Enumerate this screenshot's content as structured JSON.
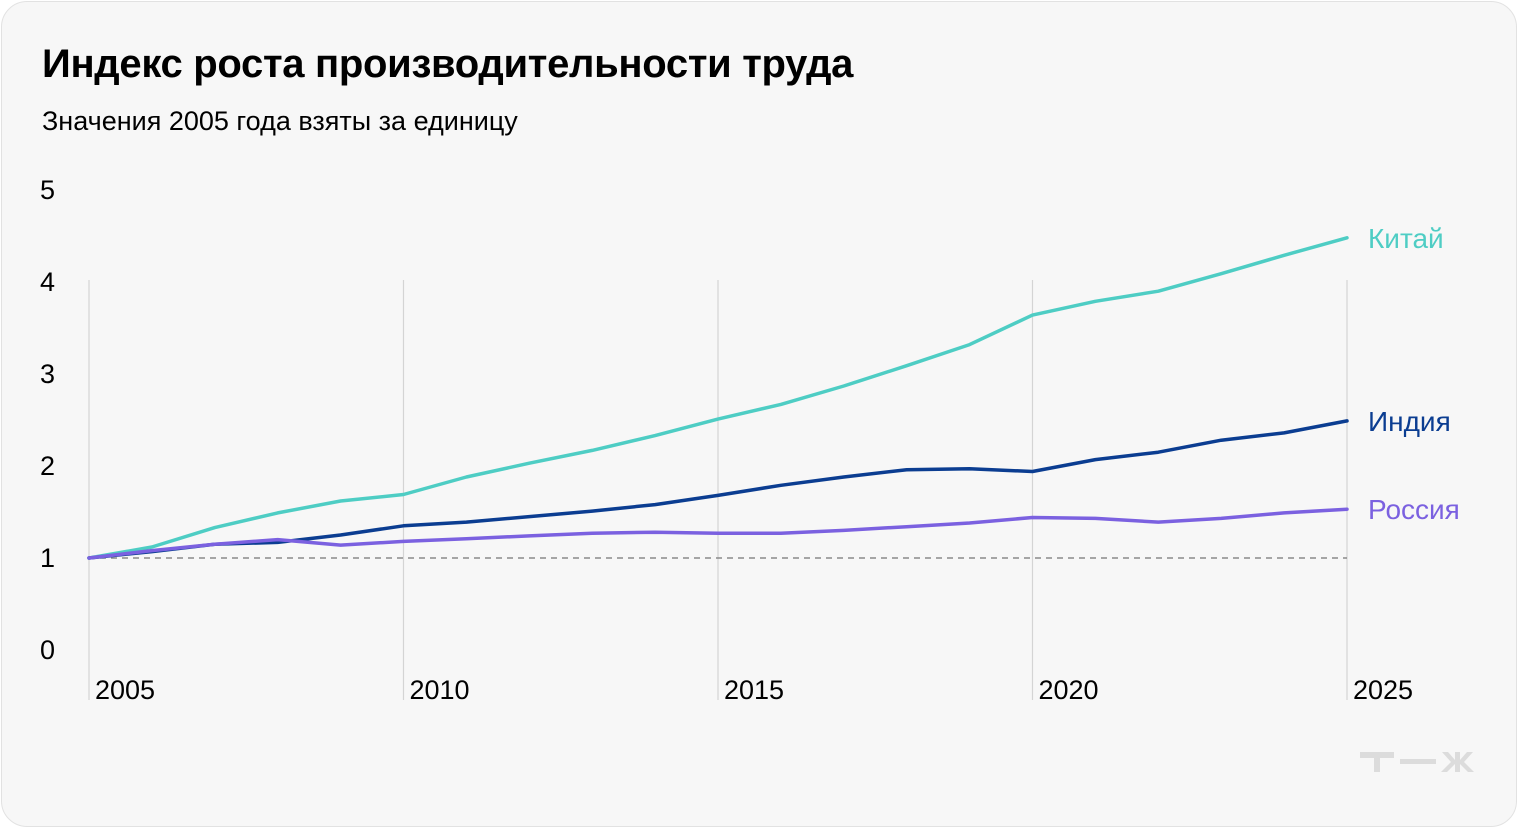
{
  "chart_data": {
    "type": "line",
    "title": "Индекс роста производительности труда",
    "subtitle": "Значения 2005 года взяты за единицу",
    "xlabel": "",
    "ylabel": "",
    "xlim": [
      2005,
      2025
    ],
    "ylim": [
      0,
      5
    ],
    "x_ticks": [
      "2005",
      "2010",
      "2015",
      "2020",
      "2025"
    ],
    "y_ticks": [
      "0",
      "1",
      "2",
      "3",
      "4",
      "5"
    ],
    "grid": "vertical lines at x ticks",
    "reference_line": {
      "y": 1,
      "style": "dashed"
    },
    "legend": "direct labels at line ends, right",
    "x": [
      2005,
      2006,
      2007,
      2008,
      2009,
      2010,
      2011,
      2012,
      2013,
      2014,
      2015,
      2016,
      2017,
      2018,
      2019,
      2020,
      2021,
      2022,
      2023,
      2024,
      2025
    ],
    "series": [
      {
        "name": "Китай",
        "color": "#4ecdc4",
        "values": [
          1.0,
          1.12,
          1.33,
          1.49,
          1.62,
          1.69,
          1.88,
          2.03,
          2.17,
          2.33,
          2.51,
          2.67,
          2.87,
          3.09,
          3.32,
          3.64,
          3.79,
          3.9,
          4.09,
          4.29,
          4.48
        ]
      },
      {
        "name": "Индия",
        "color": "#0b3d91",
        "values": [
          1.0,
          1.07,
          1.15,
          1.17,
          1.25,
          1.35,
          1.39,
          1.45,
          1.51,
          1.58,
          1.68,
          1.79,
          1.88,
          1.96,
          1.97,
          1.94,
          2.07,
          2.15,
          2.28,
          2.36,
          2.49
        ]
      },
      {
        "name": "Россия",
        "color": "#7b61e0",
        "values": [
          1.0,
          1.08,
          1.15,
          1.2,
          1.14,
          1.18,
          1.21,
          1.24,
          1.27,
          1.28,
          1.27,
          1.27,
          1.3,
          1.34,
          1.38,
          1.44,
          1.43,
          1.39,
          1.43,
          1.49,
          1.53
        ]
      }
    ]
  },
  "colors": {
    "background": "#f7f7f7",
    "grid": "#d4d4d4",
    "reference_line": "#8a8a8a",
    "axis_text": "#000000",
    "logo": "#dcdcdc"
  },
  "logo": {
    "icon": "tzh-logo-icon"
  }
}
